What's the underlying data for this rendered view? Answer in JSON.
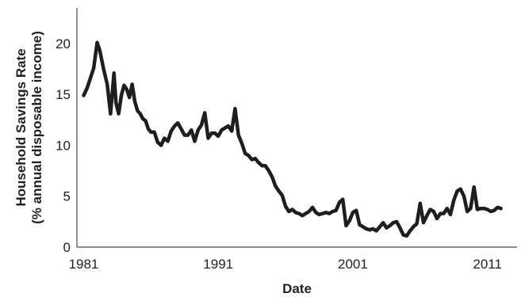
{
  "colors": {
    "series": "#1e1e1e",
    "axis": "#222222"
  },
  "chart_data": {
    "type": "line",
    "title": "",
    "xlabel": "Date",
    "ylabel": [
      "Household Savings Rate",
      "(% annual disposable income)"
    ],
    "xlim": [
      1980.5,
      2013.2
    ],
    "ylim": [
      0,
      23.5
    ],
    "grid": false,
    "x_ticks": [
      1981,
      1991,
      2001,
      2011
    ],
    "x_tick_labels": [
      "1981",
      "1991",
      "2001",
      "2011"
    ],
    "y_ticks": [
      0,
      5,
      10,
      15,
      20
    ],
    "y_tick_labels": [
      "0",
      "5",
      "10",
      "15",
      "20"
    ],
    "series": [
      {
        "x": [
          1981.0,
          1981.25,
          1981.5,
          1981.75,
          1982.0,
          1982.2,
          1982.5,
          1982.75,
          1983.0,
          1983.25,
          1983.4,
          1983.6,
          1983.8,
          1984.0,
          1984.2,
          1984.4,
          1984.6,
          1984.8,
          1985.0,
          1985.2,
          1985.4,
          1985.6,
          1985.8,
          1986.0,
          1986.25,
          1986.5,
          1986.75,
          1987.0,
          1987.25,
          1987.5,
          1987.75,
          1988.0,
          1988.25,
          1988.5,
          1988.75,
          1989.0,
          1989.25,
          1989.5,
          1989.75,
          1990.0,
          1990.25,
          1990.5,
          1990.75,
          1991.0,
          1991.25,
          1991.5,
          1991.75,
          1992.0,
          1992.25,
          1992.5,
          1992.75,
          1993.0,
          1993.25,
          1993.5,
          1993.75,
          1994.0,
          1994.25,
          1994.5,
          1994.75,
          1995.0,
          1995.25,
          1995.5,
          1995.75,
          1996.0,
          1996.25,
          1996.5,
          1996.75,
          1997.0,
          1997.25,
          1997.5,
          1997.75,
          1998.0,
          1998.25,
          1998.5,
          1998.75,
          1999.0,
          1999.25,
          1999.5,
          1999.75,
          2000.0,
          2000.25,
          2000.5,
          2000.75,
          2001.0,
          2001.25,
          2001.5,
          2001.75,
          2002.0,
          2002.25,
          2002.5,
          2002.75,
          2003.0,
          2003.25,
          2003.5,
          2003.75,
          2004.0,
          2004.25,
          2004.5,
          2004.75,
          2005.0,
          2005.25,
          2005.5,
          2005.75,
          2006.0,
          2006.25,
          2006.5,
          2006.75,
          2007.0,
          2007.25,
          2007.5,
          2007.75,
          2008.0,
          2008.25,
          2008.5,
          2008.75,
          2009.0,
          2009.25,
          2009.5,
          2009.75,
          2010.0,
          2010.25,
          2010.5,
          2010.75,
          2011.0,
          2011.25,
          2011.5,
          2011.75,
          2012.0
        ],
        "values": [
          14.9,
          15.6,
          16.6,
          17.6,
          20.1,
          19.3,
          17.4,
          16.0,
          13.1,
          17.1,
          14.2,
          13.1,
          14.9,
          15.9,
          15.5,
          14.7,
          16.0,
          14.3,
          13.4,
          13.1,
          12.6,
          12.4,
          11.6,
          11.3,
          11.3,
          10.3,
          10.0,
          10.7,
          10.4,
          11.4,
          11.9,
          12.2,
          11.6,
          11.0,
          11.0,
          11.5,
          10.4,
          11.5,
          12.0,
          13.2,
          10.7,
          11.2,
          11.2,
          10.9,
          11.5,
          11.7,
          11.9,
          11.4,
          13.6,
          11.0,
          10.2,
          9.2,
          9.0,
          8.6,
          8.7,
          8.3,
          8.0,
          8.0,
          7.5,
          6.9,
          6.0,
          5.5,
          5.1,
          4.0,
          3.5,
          3.7,
          3.4,
          3.3,
          3.1,
          3.3,
          3.5,
          3.9,
          3.4,
          3.2,
          3.3,
          3.4,
          3.3,
          3.5,
          3.6,
          4.4,
          4.7,
          2.1,
          2.6,
          3.4,
          3.6,
          2.2,
          2.0,
          1.8,
          1.7,
          1.8,
          1.6,
          2.0,
          2.4,
          1.9,
          2.1,
          2.4,
          2.5,
          1.9,
          1.2,
          1.1,
          1.6,
          2.0,
          2.3,
          4.3,
          2.4,
          3.1,
          3.7,
          3.5,
          2.8,
          3.3,
          3.3,
          3.8,
          3.2,
          4.6,
          5.5,
          5.7,
          5.0,
          3.5,
          3.8,
          5.9,
          3.7,
          3.8,
          3.8,
          3.7,
          3.5,
          3.6,
          3.9,
          3.8
        ]
      }
    ]
  }
}
